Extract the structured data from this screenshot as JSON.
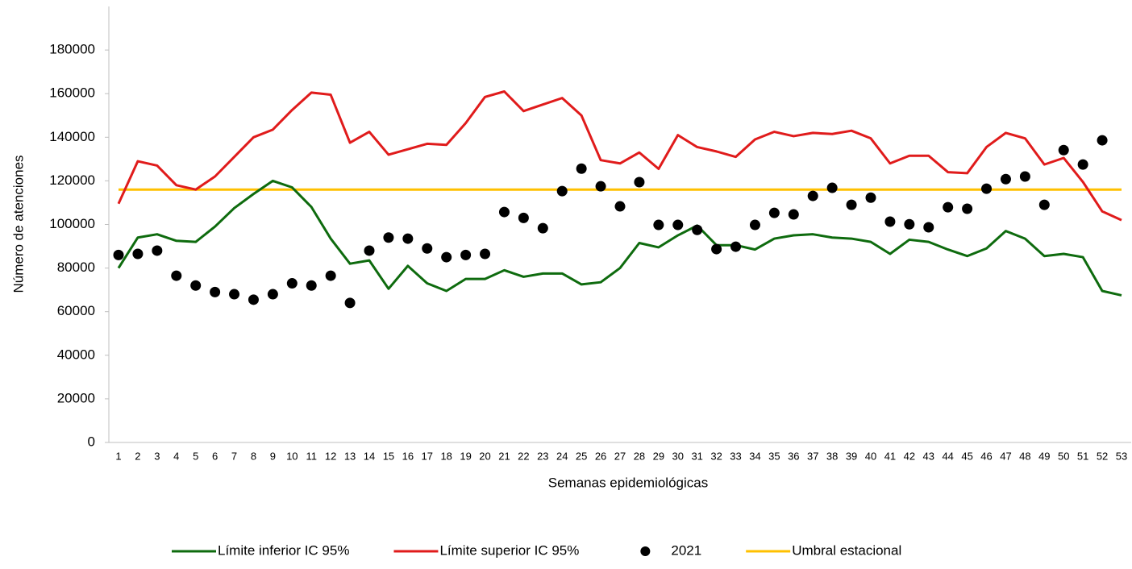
{
  "chart_data": {
    "type": "line",
    "x_label": "Semanas epidemiológicas",
    "y_label": "Número de atenciones",
    "categories": [
      "1",
      "2",
      "3",
      "4",
      "5",
      "6",
      "7",
      "8",
      "9",
      "10",
      "11",
      "12",
      "13",
      "14",
      "15",
      "16",
      "17",
      "18",
      "19",
      "20",
      "21",
      "22",
      "23",
      "24",
      "25",
      "26",
      "27",
      "28",
      "29",
      "30",
      "31",
      "32",
      "33",
      "34",
      "35",
      "36",
      "37",
      "38",
      "39",
      "40",
      "41",
      "42",
      "43",
      "44",
      "45",
      "46",
      "47",
      "48",
      "49",
      "50",
      "51",
      "52",
      "53"
    ],
    "ylim": [
      0,
      200000
    ],
    "yticks": [
      0,
      20000,
      40000,
      60000,
      80000,
      100000,
      120000,
      140000,
      160000,
      180000
    ],
    "grid": false,
    "legend": "bottom",
    "series": [
      {
        "name": "Límite inferior IC 95%",
        "color": "#0e6b0e",
        "mark": "line",
        "values": [
          80000,
          94000,
          95500,
          92500,
          92000,
          99000,
          107500,
          114000,
          120000,
          117000,
          108000,
          93500,
          82000,
          83500,
          70500,
          81000,
          73000,
          69500,
          75000,
          75000,
          79000,
          76000,
          77500,
          77500,
          72500,
          73500,
          80000,
          91500,
          89500,
          95000,
          99500,
          90500,
          90500,
          88500,
          93500,
          95000,
          95500,
          94000,
          93500,
          92000,
          86500,
          93000,
          92000,
          88500,
          85500,
          89000,
          97000,
          93500,
          85500,
          86500,
          85000,
          69500,
          67500
        ]
      },
      {
        "name": "Límite superior IC 95%",
        "color": "#e01b1b",
        "mark": "line",
        "values": [
          109500,
          129000,
          127000,
          118000,
          116000,
          122000,
          131000,
          140000,
          143500,
          152500,
          160500,
          159500,
          137500,
          142500,
          132000,
          134500,
          137000,
          136500,
          146500,
          158500,
          161000,
          152000,
          155000,
          158000,
          150000,
          129500,
          128000,
          133000,
          125500,
          141000,
          135500,
          133500,
          131000,
          139000,
          142500,
          140500,
          142000,
          141500,
          143000,
          139500,
          128000,
          131500,
          131500,
          124000,
          123500,
          135500,
          142000,
          139500,
          127500,
          130500,
          119500,
          106000,
          102000
        ]
      },
      {
        "name": "2021",
        "color": "#000000",
        "mark": "dot",
        "values": [
          86000,
          86500,
          88000,
          76500,
          72000,
          69000,
          68000,
          65500,
          68000,
          73000,
          72000,
          76500,
          64000,
          88000,
          94000,
          93500,
          89000,
          85000,
          86000,
          86500,
          105700,
          103000,
          98300,
          115300,
          125600,
          117500,
          108300,
          119400,
          99800,
          99800,
          97500,
          88700,
          89800,
          99800,
          105300,
          104600,
          113100,
          116800,
          109000,
          112300,
          101300,
          100100,
          98700,
          107900,
          107200,
          116400,
          120800,
          122000,
          109000,
          134100,
          127500,
          138600,
          null
        ]
      },
      {
        "name": "Umbral estacional",
        "color": "#ffc000",
        "mark": "line",
        "values": [
          116000,
          116000,
          116000,
          116000,
          116000,
          116000,
          116000,
          116000,
          116000,
          116000,
          116000,
          116000,
          116000,
          116000,
          116000,
          116000,
          116000,
          116000,
          116000,
          116000,
          116000,
          116000,
          116000,
          116000,
          116000,
          116000,
          116000,
          116000,
          116000,
          116000,
          116000,
          116000,
          116000,
          116000,
          116000,
          116000,
          116000,
          116000,
          116000,
          116000,
          116000,
          116000,
          116000,
          116000,
          116000,
          116000,
          116000,
          116000,
          116000,
          116000,
          116000,
          116000,
          116000
        ]
      }
    ]
  }
}
